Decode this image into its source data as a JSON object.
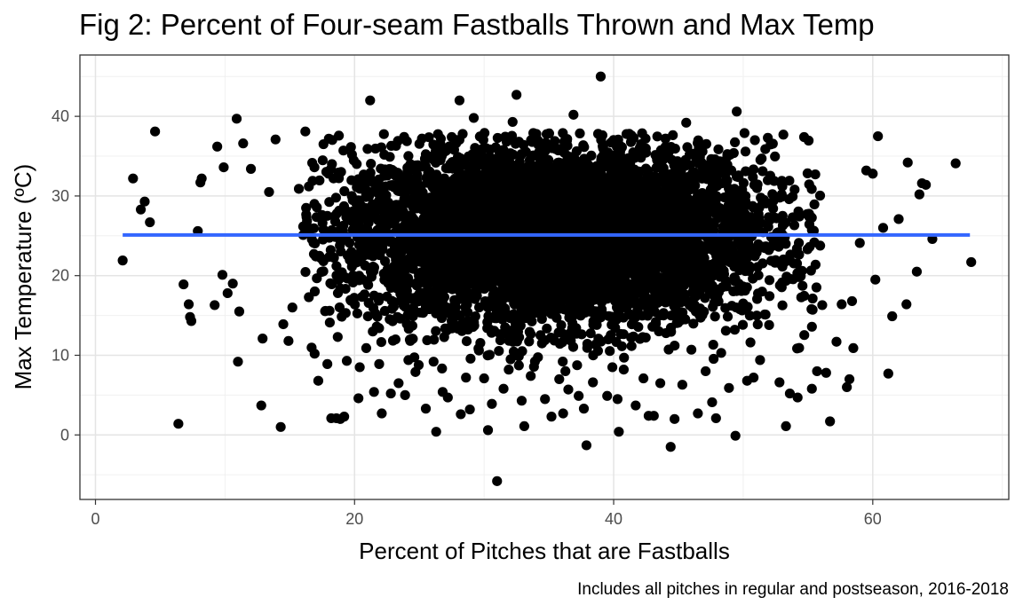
{
  "chart_data": {
    "type": "scatter",
    "title": "Fig 2: Percent of Four-seam Fastballs Thrown and Max Temp",
    "xlabel": "Percent of Pitches that are Fastballs",
    "ylabel": "Max Temperature (ºC)",
    "caption": "Includes all pitches in regular and postseason, 2016-2018",
    "xlim": [
      -1.2,
      70.5
    ],
    "ylim": [
      -8.1,
      47.7
    ],
    "x_ticks": [
      0,
      20,
      40,
      60
    ],
    "y_ticks": [
      0,
      10,
      20,
      30,
      40
    ],
    "x_tick_labels": [
      "0",
      "20",
      "40",
      "60"
    ],
    "y_tick_labels": [
      "0",
      "10",
      "20",
      "30",
      "40"
    ],
    "grid": true,
    "theme": "bw",
    "point_color": "#000000",
    "trend_color": "#3366FF",
    "fit_line": {
      "name": "Linear fit",
      "x": [
        2.1,
        67.5
      ],
      "y": [
        25.1,
        25.1
      ]
    },
    "series": [
      {
        "cloud": {
          "n": 6000,
          "mean_x": 35.5,
          "sd_x": 8.3,
          "mean_y": 25.2,
          "sd_y": 5.6,
          "x_range": [
            16,
            56
          ],
          "y_range": [
            8,
            38
          ]
        },
        "points": [
          [
            2.1,
            21.9
          ],
          [
            2.9,
            32.2
          ],
          [
            3.5,
            28.3
          ],
          [
            3.8,
            29.3
          ],
          [
            4.2,
            26.7
          ],
          [
            4.6,
            38.1
          ],
          [
            6.4,
            1.4
          ],
          [
            6.8,
            18.9
          ],
          [
            7.2,
            16.4
          ],
          [
            7.3,
            14.8
          ],
          [
            7.4,
            14.3
          ],
          [
            7.9,
            25.6
          ],
          [
            8.1,
            31.7
          ],
          [
            8.2,
            32.2
          ],
          [
            9.2,
            16.3
          ],
          [
            9.4,
            36.2
          ],
          [
            9.8,
            20.1
          ],
          [
            9.9,
            33.6
          ],
          [
            10.2,
            17.8
          ],
          [
            10.6,
            19.0
          ],
          [
            10.9,
            39.7
          ],
          [
            11.0,
            9.2
          ],
          [
            11.1,
            15.5
          ],
          [
            11.4,
            36.6
          ],
          [
            12.0,
            33.4
          ],
          [
            12.8,
            3.7
          ],
          [
            12.9,
            12.1
          ],
          [
            13.4,
            30.5
          ],
          [
            13.9,
            37.1
          ],
          [
            14.3,
            1.0
          ],
          [
            14.5,
            13.9
          ],
          [
            14.9,
            11.8
          ],
          [
            15.2,
            16.0
          ],
          [
            15.7,
            30.9
          ],
          [
            16.2,
            38.1
          ],
          [
            16.9,
            29.0
          ],
          [
            17.2,
            6.8
          ],
          [
            17.6,
            36.5
          ],
          [
            17.9,
            8.9
          ],
          [
            18.2,
            2.1
          ],
          [
            18.6,
            2.1
          ],
          [
            18.9,
            2.0
          ],
          [
            19.2,
            2.3
          ],
          [
            18.7,
            12.3
          ],
          [
            19.4,
            9.3
          ],
          [
            19.8,
            35.2
          ],
          [
            20.3,
            4.6
          ],
          [
            20.4,
            8.5
          ],
          [
            20.9,
            10.9
          ],
          [
            21.2,
            42.0
          ],
          [
            21.5,
            5.4
          ],
          [
            21.9,
            8.9
          ],
          [
            22.1,
            2.7
          ],
          [
            22.8,
            5.2
          ],
          [
            23.2,
            36.3
          ],
          [
            23.4,
            6.5
          ],
          [
            23.9,
            5.0
          ],
          [
            24.3,
            11.8
          ],
          [
            24.7,
            7.9
          ],
          [
            25.2,
            37.2
          ],
          [
            25.5,
            3.3
          ],
          [
            26.1,
            9.2
          ],
          [
            26.3,
            0.4
          ],
          [
            26.8,
            5.4
          ],
          [
            27.2,
            4.7
          ],
          [
            27.5,
            37.4
          ],
          [
            28.1,
            42.0
          ],
          [
            28.2,
            2.6
          ],
          [
            28.6,
            7.2
          ],
          [
            28.9,
            3.2
          ],
          [
            29.2,
            39.8
          ],
          [
            29.6,
            10.6
          ],
          [
            30.0,
            7.1
          ],
          [
            30.3,
            0.6
          ],
          [
            30.6,
            3.9
          ],
          [
            30.9,
            36.1
          ],
          [
            31.0,
            -5.8
          ],
          [
            31.5,
            5.8
          ],
          [
            31.9,
            8.2
          ],
          [
            32.2,
            39.3
          ],
          [
            32.5,
            42.7
          ],
          [
            32.9,
            4.3
          ],
          [
            33.1,
            1.1
          ],
          [
            33.6,
            7.4
          ],
          [
            34.2,
            36.4
          ],
          [
            34.7,
            4.5
          ],
          [
            35.2,
            2.3
          ],
          [
            35.8,
            7.0
          ],
          [
            36.1,
            2.7
          ],
          [
            36.5,
            5.7
          ],
          [
            36.9,
            40.2
          ],
          [
            37.3,
            4.9
          ],
          [
            37.7,
            3.3
          ],
          [
            37.9,
            -1.3
          ],
          [
            38.4,
            6.6
          ],
          [
            38.8,
            37.8
          ],
          [
            39.0,
            45.0
          ],
          [
            39.5,
            4.9
          ],
          [
            39.9,
            8.5
          ],
          [
            40.3,
            4.5
          ],
          [
            40.4,
            0.4
          ],
          [
            40.8,
            9.7
          ],
          [
            41.2,
            37.8
          ],
          [
            41.7,
            3.7
          ],
          [
            42.3,
            7.1
          ],
          [
            42.7,
            2.4
          ],
          [
            43.1,
            2.4
          ],
          [
            43.6,
            6.5
          ],
          [
            44.0,
            37.2
          ],
          [
            44.4,
            -1.5
          ],
          [
            44.7,
            2.0
          ],
          [
            45.3,
            6.3
          ],
          [
            45.6,
            39.2
          ],
          [
            46.0,
            10.7
          ],
          [
            46.5,
            2.7
          ],
          [
            47.1,
            8.0
          ],
          [
            47.6,
            4.1
          ],
          [
            47.9,
            2.1
          ],
          [
            48.3,
            10.3
          ],
          [
            48.9,
            5.9
          ],
          [
            49.4,
            -0.1
          ],
          [
            49.5,
            40.6
          ],
          [
            50.1,
            37.9
          ],
          [
            50.3,
            6.8
          ],
          [
            50.8,
            7.2
          ],
          [
            51.3,
            9.4
          ],
          [
            51.9,
            37.3
          ],
          [
            52.0,
            13.8
          ],
          [
            52.8,
            6.6
          ],
          [
            53.1,
            37.7
          ],
          [
            53.3,
            1.1
          ],
          [
            53.6,
            5.2
          ],
          [
            54.2,
            4.7
          ],
          [
            54.7,
            37.4
          ],
          [
            55.3,
            5.8
          ],
          [
            55.7,
            8.0
          ],
          [
            56.1,
            16.3
          ],
          [
            56.4,
            7.8
          ],
          [
            56.7,
            1.7
          ],
          [
            57.2,
            11.7
          ],
          [
            57.6,
            16.4
          ],
          [
            58.0,
            6.0
          ],
          [
            58.2,
            7.0
          ],
          [
            58.4,
            16.8
          ],
          [
            58.5,
            10.9
          ],
          [
            59.0,
            24.1
          ],
          [
            59.5,
            33.2
          ],
          [
            60.0,
            32.8
          ],
          [
            60.2,
            19.5
          ],
          [
            60.4,
            37.5
          ],
          [
            60.8,
            26.0
          ],
          [
            61.2,
            7.7
          ],
          [
            61.5,
            14.9
          ],
          [
            62.0,
            27.1
          ],
          [
            62.6,
            16.4
          ],
          [
            62.7,
            34.2
          ],
          [
            63.4,
            20.5
          ],
          [
            63.6,
            30.2
          ],
          [
            63.8,
            31.6
          ],
          [
            64.1,
            31.4
          ],
          [
            64.6,
            24.6
          ],
          [
            66.4,
            34.1
          ],
          [
            67.6,
            21.7
          ]
        ]
      }
    ]
  }
}
